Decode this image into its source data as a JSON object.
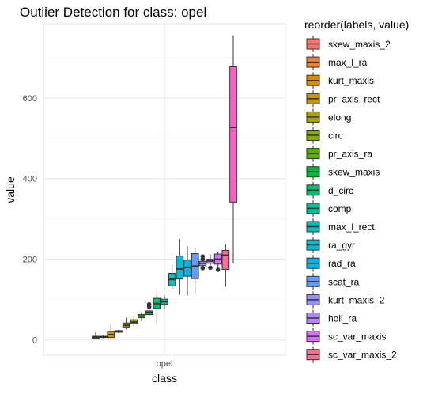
{
  "chart_data": {
    "type": "boxplot",
    "title": "Outlier Detection for class: opel",
    "xlabel": "class",
    "ylabel": "value",
    "categories": [
      "opel"
    ],
    "ylim": [
      -38,
      784
    ],
    "yticks": [
      0,
      200,
      400,
      600
    ],
    "grid": true,
    "legend": {
      "title": "reorder(labels, value)",
      "position": "right"
    },
    "series": [
      {
        "name": "skew_maxis_2",
        "color": "#F8766D",
        "box": {
          "min": 1,
          "q1": 4,
          "median": 7,
          "q3": 9,
          "max": 19
        },
        "outliers": []
      },
      {
        "name": "max_l_ra",
        "color": "#EB8335",
        "box": {
          "min": 4,
          "q1": 6,
          "median": 7,
          "q3": 9,
          "max": 11
        },
        "outliers": []
      },
      {
        "name": "kurt_maxis",
        "color": "#DA8F00",
        "box": {
          "min": 0,
          "q1": 6,
          "median": 13,
          "q3": 21,
          "max": 38
        },
        "outliers": []
      },
      {
        "name": "pr_axis_rect",
        "color": "#C49A00",
        "box": {
          "min": 17,
          "q1": 19,
          "median": 21,
          "q3": 23,
          "max": 25
        },
        "outliers": []
      },
      {
        "name": "elong",
        "color": "#A9A400",
        "box": {
          "min": 26,
          "q1": 31,
          "median": 36,
          "q3": 42,
          "max": 55
        },
        "outliers": []
      },
      {
        "name": "circ",
        "color": "#86AC00",
        "box": {
          "min": 33,
          "q1": 40,
          "median": 44,
          "q3": 50,
          "max": 58
        },
        "outliers": []
      },
      {
        "name": "pr_axis_ra",
        "color": "#53B400",
        "box": {
          "min": 47,
          "q1": 55,
          "median": 59,
          "q3": 63,
          "max": 69
        },
        "outliers": []
      },
      {
        "name": "skew_maxis",
        "color": "#00BA38",
        "box": {
          "min": 60,
          "q1": 63,
          "median": 68,
          "q3": 72,
          "max": 76
        },
        "outliers": [
          82,
          88
        ]
      },
      {
        "name": "d_circ",
        "color": "#00BE6C",
        "box": {
          "min": 42,
          "q1": 78,
          "median": 90,
          "q3": 103,
          "max": 112
        },
        "outliers": []
      },
      {
        "name": "comp",
        "color": "#00C094",
        "box": {
          "min": 76,
          "q1": 88,
          "median": 95,
          "q3": 101,
          "max": 110
        },
        "outliers": []
      },
      {
        "name": "max_l_rect",
        "color": "#00C0B8",
        "box": {
          "min": 126,
          "q1": 134,
          "median": 150,
          "q3": 165,
          "max": 185
        },
        "outliers": []
      },
      {
        "name": "ra_gyr",
        "color": "#00BCD8",
        "box": {
          "min": 112,
          "q1": 151,
          "median": 176,
          "q3": 208,
          "max": 250
        },
        "outliers": []
      },
      {
        "name": "rad_ra",
        "color": "#00B4F0",
        "box": {
          "min": 110,
          "q1": 158,
          "median": 180,
          "q3": 198,
          "max": 232
        },
        "outliers": []
      },
      {
        "name": "scat_ra",
        "color": "#619CFF",
        "box": {
          "min": 113,
          "q1": 152,
          "median": 183,
          "q3": 214,
          "max": 230
        },
        "outliers": []
      },
      {
        "name": "kurt_maxis_2",
        "color": "#9590FF",
        "box": {
          "min": 176,
          "q1": 184,
          "median": 190,
          "q3": 195,
          "max": 204
        },
        "outliers": [
          178,
          200,
          207
        ]
      },
      {
        "name": "holl_ra",
        "color": "#B983FF",
        "box": {
          "min": 185,
          "q1": 190,
          "median": 196,
          "q3": 200,
          "max": 212
        },
        "outliers": [
          179
        ]
      },
      {
        "name": "sc_var_maxis",
        "color": "#DB72FB",
        "box": {
          "min": 176,
          "q1": 188,
          "median": 200,
          "q3": 213,
          "max": 219
        },
        "outliers": [
          174
        ]
      },
      {
        "name": "sc_var_maxis_2",
        "color": "#FF6C91",
        "box": {
          "min": 132,
          "q1": 175,
          "median": 210,
          "q3": 222,
          "max": 237
        },
        "outliers": []
      },
      {
        "name": "",
        "color": "#FF61C3",
        "box": {
          "min": 190,
          "q1": 342,
          "median": 527,
          "q3": 677,
          "max": 755
        },
        "outliers": []
      }
    ]
  }
}
